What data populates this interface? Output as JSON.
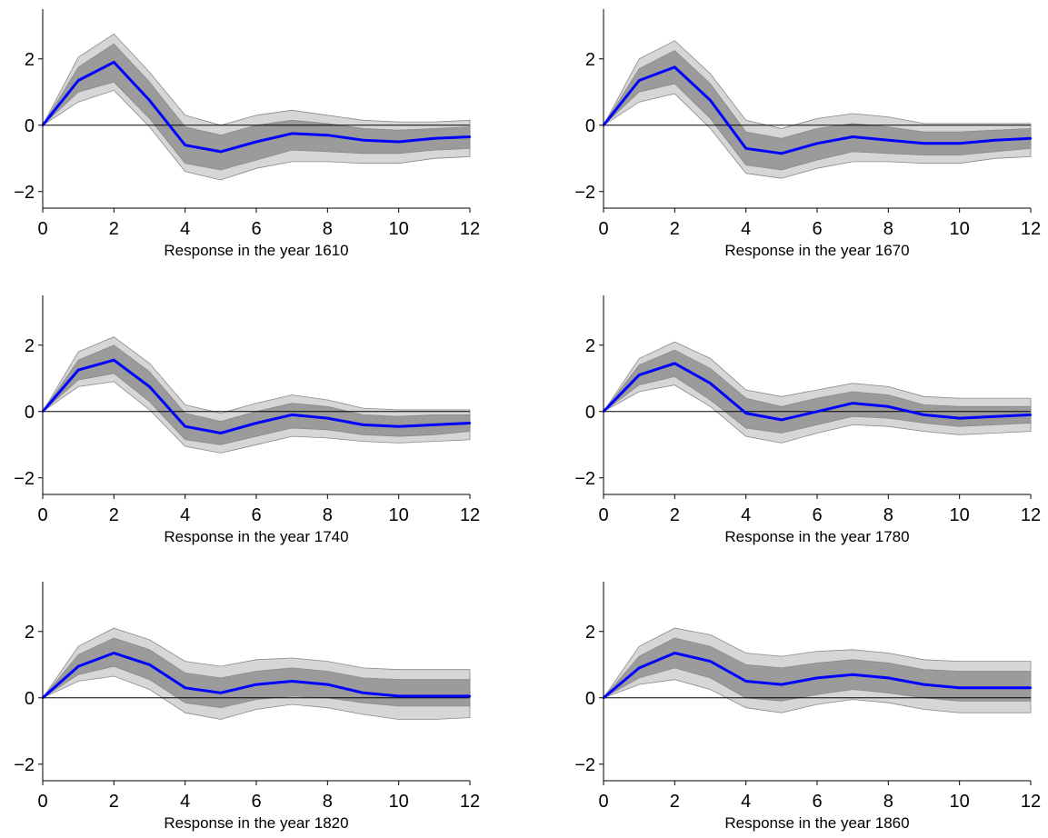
{
  "chart_data": [
    {
      "type": "line",
      "xlabel": "Response in the year 1610",
      "xlim": [
        0,
        12
      ],
      "ylim": [
        -2.5,
        3.5
      ],
      "xticks": [
        0,
        2,
        4,
        6,
        8,
        10,
        12
      ],
      "yticks": [
        -2,
        0,
        2
      ],
      "x": [
        0,
        1,
        2,
        3,
        4,
        5,
        6,
        7,
        8,
        9,
        10,
        11,
        12
      ],
      "series": [
        {
          "values": [
            0,
            1.35,
            1.9,
            0.75,
            -0.6,
            -0.8,
            -0.5,
            -0.25,
            -0.3,
            -0.45,
            -0.5,
            -0.4,
            -0.35
          ],
          "inner_band": {
            "lower": [
              0,
              1.0,
              1.3,
              0.2,
              -1.15,
              -1.35,
              -1.05,
              -0.75,
              -0.8,
              -0.85,
              -0.85,
              -0.75,
              -0.7
            ],
            "upper": [
              0,
              1.75,
              2.45,
              1.3,
              -0.05,
              -0.3,
              0.0,
              0.15,
              0.05,
              -0.1,
              -0.15,
              -0.1,
              -0.05
            ]
          },
          "outer_band": {
            "lower": [
              0,
              0.7,
              1.05,
              -0.05,
              -1.4,
              -1.65,
              -1.3,
              -1.1,
              -1.1,
              -1.15,
              -1.15,
              -1.0,
              -0.95
            ],
            "upper": [
              0,
              2.05,
              2.75,
              1.6,
              0.3,
              0.0,
              0.3,
              0.45,
              0.3,
              0.15,
              0.1,
              0.1,
              0.15
            ]
          }
        }
      ]
    },
    {
      "type": "line",
      "xlabel": "Response in the year 1670",
      "xlim": [
        0,
        12
      ],
      "ylim": [
        -2.5,
        3.5
      ],
      "xticks": [
        0,
        2,
        4,
        6,
        8,
        10,
        12
      ],
      "yticks": [
        -2,
        0,
        2
      ],
      "x": [
        0,
        1,
        2,
        3,
        4,
        5,
        6,
        7,
        8,
        9,
        10,
        11,
        12
      ],
      "series": [
        {
          "values": [
            0,
            1.35,
            1.75,
            0.75,
            -0.7,
            -0.85,
            -0.55,
            -0.35,
            -0.45,
            -0.55,
            -0.55,
            -0.45,
            -0.4
          ],
          "inner_band": {
            "lower": [
              0,
              1.0,
              1.25,
              0.2,
              -1.2,
              -1.35,
              -1.05,
              -0.8,
              -0.85,
              -0.9,
              -0.9,
              -0.8,
              -0.7
            ],
            "upper": [
              0,
              1.7,
              2.25,
              1.25,
              -0.2,
              -0.4,
              -0.1,
              0.05,
              -0.05,
              -0.2,
              -0.2,
              -0.15,
              -0.1
            ]
          },
          "outer_band": {
            "lower": [
              0,
              0.7,
              0.95,
              -0.1,
              -1.45,
              -1.6,
              -1.3,
              -1.1,
              -1.1,
              -1.15,
              -1.15,
              -1.0,
              -0.95
            ],
            "upper": [
              0,
              2.0,
              2.55,
              1.55,
              0.15,
              -0.1,
              0.2,
              0.35,
              0.25,
              0.05,
              0.05,
              0.05,
              0.05
            ]
          }
        }
      ]
    },
    {
      "type": "line",
      "xlabel": "Response in the year 1740",
      "xlim": [
        0,
        12
      ],
      "ylim": [
        -2.5,
        3.5
      ],
      "xticks": [
        0,
        2,
        4,
        6,
        8,
        10,
        12
      ],
      "yticks": [
        -2,
        0,
        2
      ],
      "x": [
        0,
        1,
        2,
        3,
        4,
        5,
        6,
        7,
        8,
        9,
        10,
        11,
        12
      ],
      "series": [
        {
          "values": [
            0,
            1.25,
            1.55,
            0.75,
            -0.45,
            -0.65,
            -0.35,
            -0.1,
            -0.2,
            -0.4,
            -0.45,
            -0.4,
            -0.35
          ],
          "inner_band": {
            "lower": [
              0,
              0.95,
              1.15,
              0.3,
              -0.85,
              -1.0,
              -0.75,
              -0.5,
              -0.55,
              -0.7,
              -0.75,
              -0.7,
              -0.6
            ],
            "upper": [
              0,
              1.55,
              2.0,
              1.2,
              -0.05,
              -0.3,
              0.0,
              0.25,
              0.15,
              -0.1,
              -0.15,
              -0.1,
              -0.1
            ]
          },
          "outer_band": {
            "lower": [
              0,
              0.75,
              0.9,
              0.05,
              -1.05,
              -1.25,
              -1.0,
              -0.75,
              -0.8,
              -0.9,
              -0.95,
              -0.9,
              -0.85
            ],
            "upper": [
              0,
              1.8,
              2.25,
              1.45,
              0.2,
              -0.05,
              0.25,
              0.5,
              0.35,
              0.1,
              0.05,
              0.05,
              0.05
            ]
          }
        }
      ]
    },
    {
      "type": "line",
      "xlabel": "Response in the year 1780",
      "xlim": [
        0,
        12
      ],
      "ylim": [
        -2.5,
        3.5
      ],
      "xticks": [
        0,
        2,
        4,
        6,
        8,
        10,
        12
      ],
      "yticks": [
        -2,
        0,
        2
      ],
      "x": [
        0,
        1,
        2,
        3,
        4,
        5,
        6,
        7,
        8,
        9,
        10,
        11,
        12
      ],
      "series": [
        {
          "values": [
            0,
            1.1,
            1.45,
            0.85,
            -0.05,
            -0.25,
            0.0,
            0.25,
            0.15,
            -0.1,
            -0.2,
            -0.15,
            -0.1
          ],
          "inner_band": {
            "lower": [
              0,
              0.8,
              1.05,
              0.35,
              -0.5,
              -0.65,
              -0.4,
              -0.15,
              -0.2,
              -0.35,
              -0.45,
              -0.4,
              -0.35
            ],
            "upper": [
              0,
              1.4,
              1.85,
              1.3,
              0.4,
              0.15,
              0.4,
              0.6,
              0.5,
              0.2,
              0.15,
              0.15,
              0.15
            ]
          },
          "outer_band": {
            "lower": [
              0,
              0.6,
              0.8,
              0.15,
              -0.75,
              -0.95,
              -0.65,
              -0.4,
              -0.45,
              -0.6,
              -0.7,
              -0.65,
              -0.6
            ],
            "upper": [
              0,
              1.6,
              2.1,
              1.6,
              0.65,
              0.45,
              0.65,
              0.85,
              0.75,
              0.45,
              0.4,
              0.4,
              0.4
            ]
          }
        }
      ]
    },
    {
      "type": "line",
      "xlabel": "Response in the year 1820",
      "xlim": [
        0,
        12
      ],
      "ylim": [
        -2.5,
        3.5
      ],
      "xticks": [
        0,
        2,
        4,
        6,
        8,
        10,
        12
      ],
      "yticks": [
        -2,
        0,
        2
      ],
      "x": [
        0,
        1,
        2,
        3,
        4,
        5,
        6,
        7,
        8,
        9,
        10,
        11,
        12
      ],
      "series": [
        {
          "values": [
            0,
            0.95,
            1.35,
            1.0,
            0.3,
            0.15,
            0.4,
            0.5,
            0.4,
            0.15,
            0.05,
            0.05,
            0.05
          ],
          "inner_band": {
            "lower": [
              0,
              0.7,
              0.95,
              0.55,
              -0.15,
              -0.3,
              -0.05,
              0.05,
              0.0,
              -0.15,
              -0.25,
              -0.25,
              -0.25
            ],
            "upper": [
              0,
              1.3,
              1.8,
              1.45,
              0.75,
              0.6,
              0.8,
              0.9,
              0.8,
              0.6,
              0.55,
              0.55,
              0.55
            ]
          },
          "outer_band": {
            "lower": [
              0,
              0.5,
              0.65,
              0.25,
              -0.45,
              -0.65,
              -0.35,
              -0.2,
              -0.3,
              -0.5,
              -0.65,
              -0.65,
              -0.6
            ],
            "upper": [
              0,
              1.55,
              2.1,
              1.75,
              1.1,
              0.95,
              1.15,
              1.2,
              1.1,
              0.9,
              0.85,
              0.85,
              0.85
            ]
          }
        }
      ]
    },
    {
      "type": "line",
      "xlabel": "Response in the year 1860",
      "xlim": [
        0,
        12
      ],
      "ylim": [
        -2.5,
        3.5
      ],
      "xticks": [
        0,
        2,
        4,
        6,
        8,
        10,
        12
      ],
      "yticks": [
        -2,
        0,
        2
      ],
      "x": [
        0,
        1,
        2,
        3,
        4,
        5,
        6,
        7,
        8,
        9,
        10,
        11,
        12
      ],
      "series": [
        {
          "values": [
            0,
            0.9,
            1.35,
            1.1,
            0.5,
            0.4,
            0.6,
            0.7,
            0.6,
            0.4,
            0.3,
            0.3,
            0.3
          ],
          "inner_band": {
            "lower": [
              0,
              0.6,
              0.9,
              0.6,
              0.0,
              -0.1,
              0.1,
              0.25,
              0.15,
              0.0,
              -0.1,
              -0.1,
              -0.1
            ],
            "upper": [
              0,
              1.25,
              1.8,
              1.55,
              1.0,
              0.9,
              1.05,
              1.15,
              1.05,
              0.85,
              0.8,
              0.8,
              0.8
            ]
          },
          "outer_band": {
            "lower": [
              0,
              0.4,
              0.55,
              0.25,
              -0.3,
              -0.45,
              -0.2,
              -0.05,
              -0.15,
              -0.35,
              -0.45,
              -0.45,
              -0.45
            ],
            "upper": [
              0,
              1.55,
              2.1,
              1.9,
              1.35,
              1.25,
              1.4,
              1.45,
              1.35,
              1.15,
              1.1,
              1.1,
              1.1
            ]
          }
        }
      ]
    }
  ],
  "colors": {
    "line": "#0000ff",
    "inner_band": "#9b9b9b",
    "outer_band": "#d6d6d6",
    "band_edge": "#8a8a8a",
    "axis": "#000000",
    "zero_line": "#000000"
  }
}
